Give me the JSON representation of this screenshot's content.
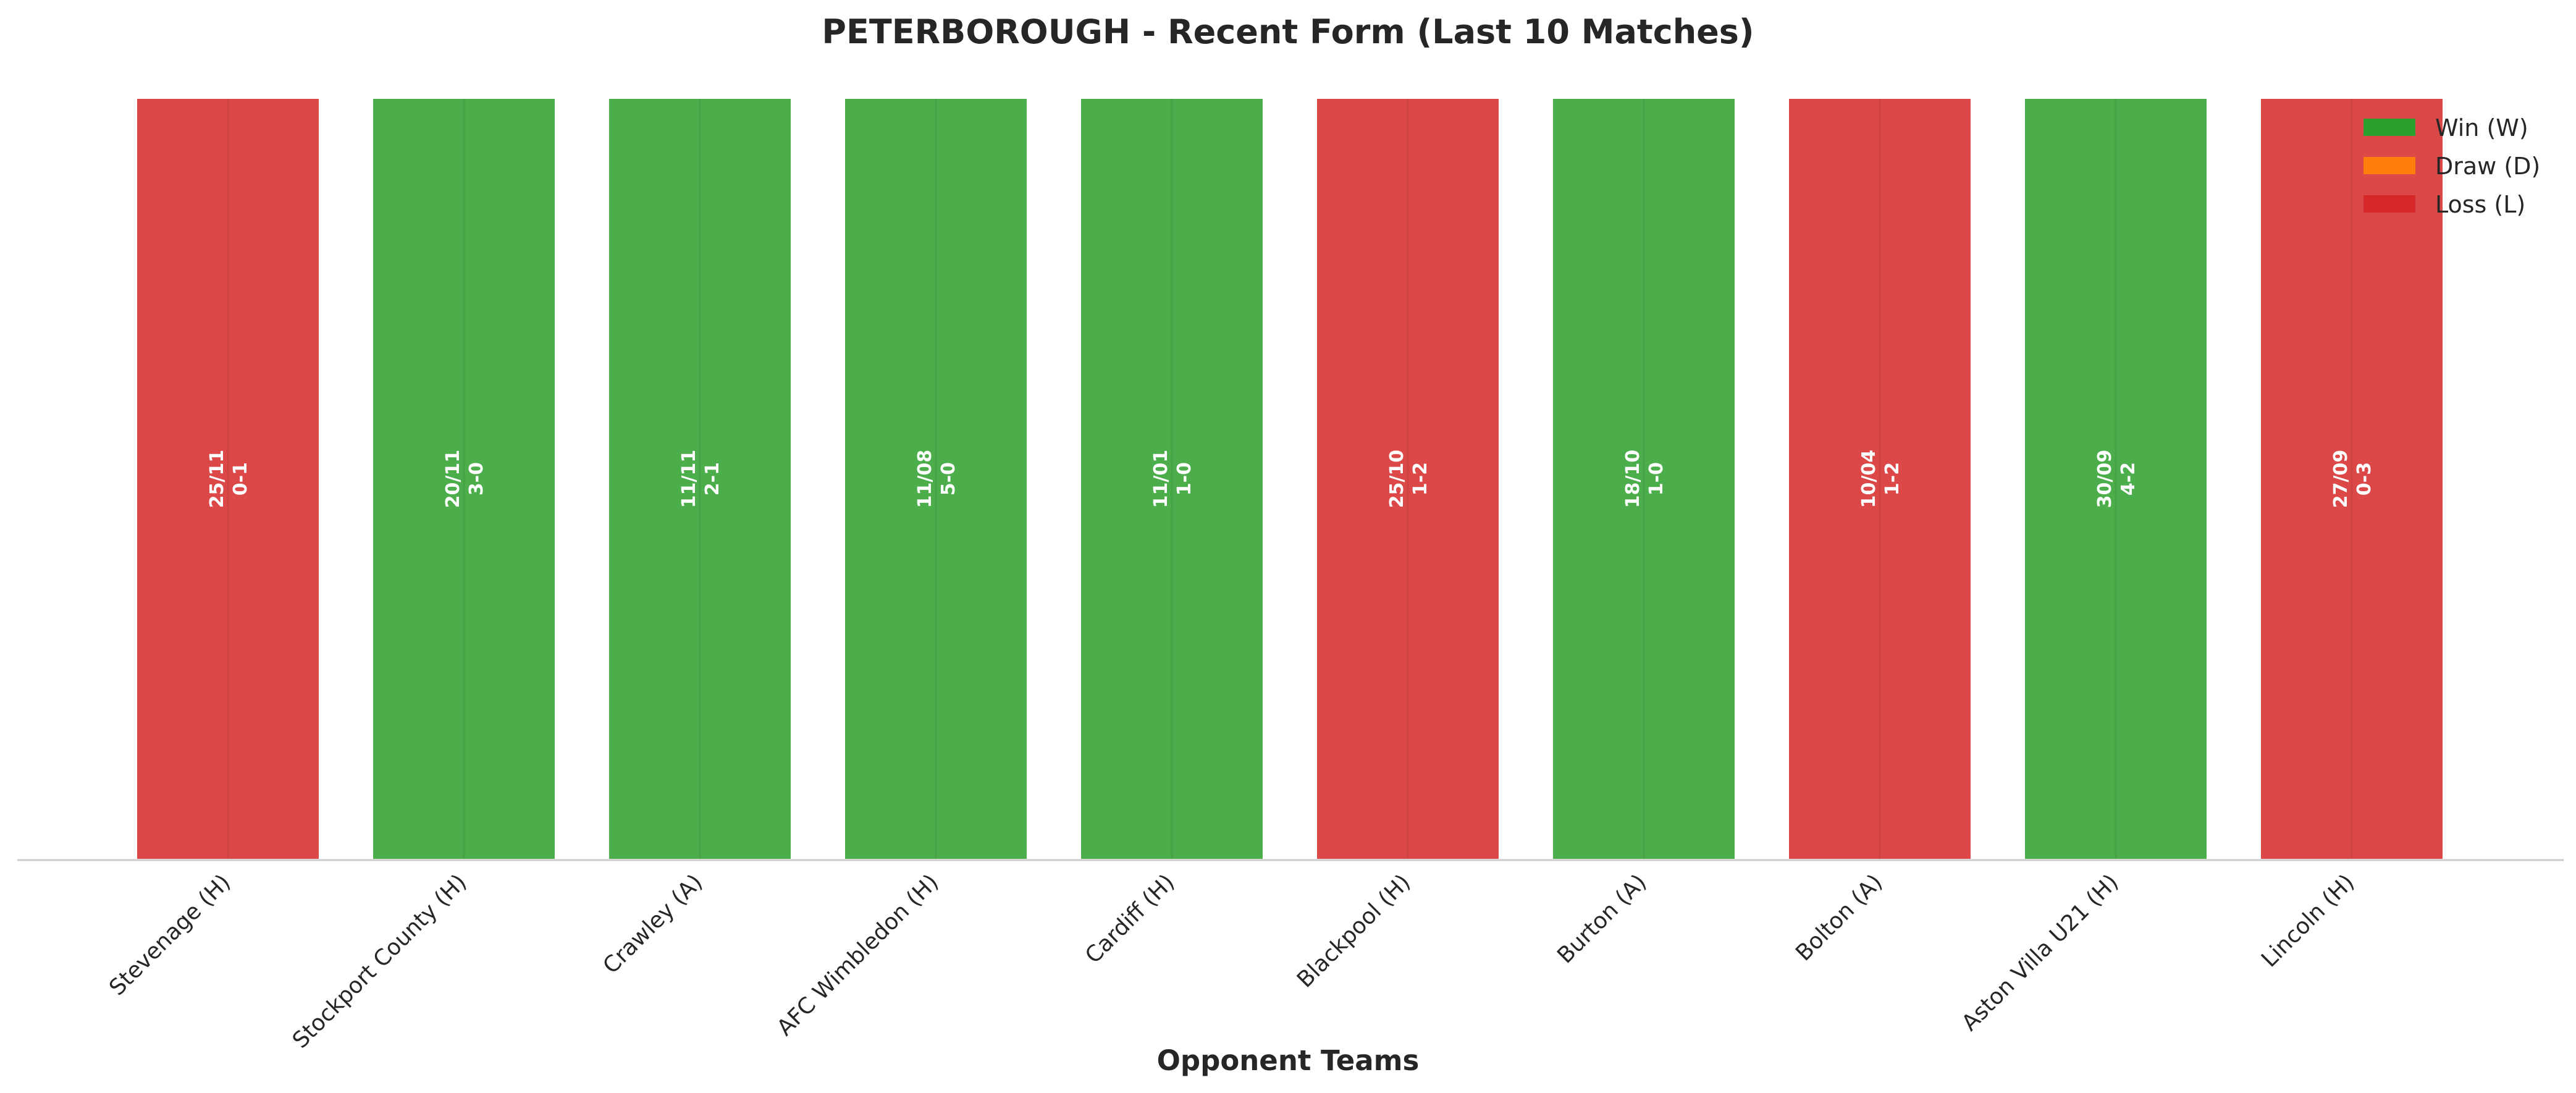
{
  "chart_data": {
    "type": "bar",
    "title": "PETERBOROUGH - Recent Form (Last 10 Matches)",
    "xlabel": "Opponent Teams",
    "ylabel": "",
    "categories": [
      "Stevenage (H)",
      "Stockport County (H)",
      "Crawley (A)",
      "AFC Wimbledon (H)",
      "Cardiff (H)",
      "Blackpool (H)",
      "Burton (A)",
      "Bolton (A)",
      "Aston Villa U21 (H)",
      "Lincoln (H)"
    ],
    "values": [
      1,
      1,
      1,
      1,
      1,
      1,
      1,
      1,
      1,
      1
    ],
    "results": [
      "L",
      "W",
      "W",
      "W",
      "W",
      "L",
      "W",
      "L",
      "W",
      "L"
    ],
    "dates": [
      "25/11",
      "20/11",
      "11/11",
      "11/08",
      "11/01",
      "25/10",
      "18/10",
      "10/04",
      "30/09",
      "27/09"
    ],
    "scores": [
      "0-1",
      "3-0",
      "2-1",
      "5-0",
      "1-0",
      "1-2",
      "1-0",
      "1-2",
      "4-2",
      "0-3"
    ],
    "legend": [
      {
        "key": "W",
        "label": "Win (W)",
        "color": "#2ca02c"
      },
      {
        "key": "D",
        "label": "Draw (D)",
        "color": "#ff7f0e"
      },
      {
        "key": "L",
        "label": "Loss (L)",
        "color": "#d62728"
      }
    ],
    "legend_position": "top-right",
    "grid": false,
    "ylim": [
      0,
      1
    ]
  }
}
